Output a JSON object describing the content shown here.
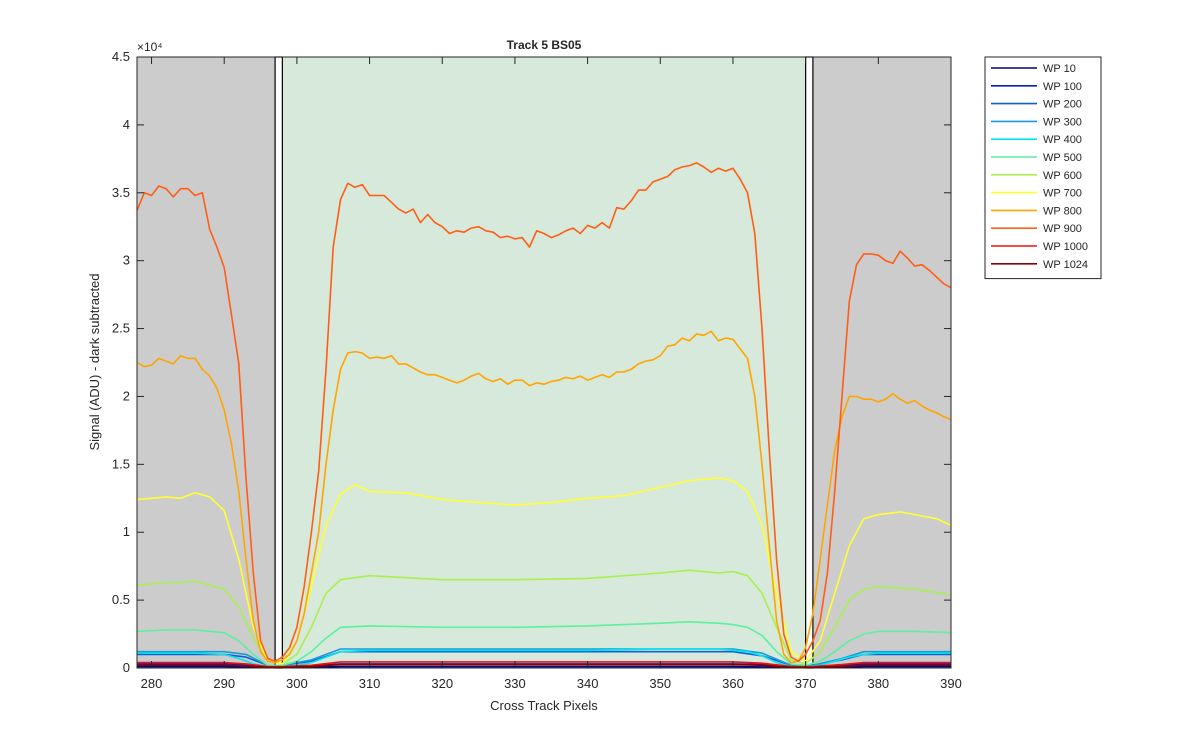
{
  "chart_data": {
    "type": "line",
    "title": "Track 5  BS05",
    "xlabel": "Cross Track Pixels",
    "ylabel": "Signal (ADU) - dark subtracted",
    "y_exponent_label": "×10⁴",
    "xlim": [
      278,
      390
    ],
    "ylim": [
      0,
      4.5
    ],
    "y_scale_note": "values in units of 10^4 ADU",
    "xticks": [
      280,
      290,
      300,
      310,
      320,
      330,
      340,
      350,
      360,
      370,
      380,
      390
    ],
    "yticks": [
      0,
      0.5,
      1,
      1.5,
      2,
      2.5,
      3,
      3.5,
      4,
      4.5
    ],
    "ytick_labels": [
      "0",
      "0.5",
      "1",
      "1.5",
      "2",
      "2.5",
      "3",
      "3.5",
      "4",
      "4.5"
    ],
    "grid": false,
    "legend_position": "outside-top-right",
    "shaded_regions": [
      {
        "x": [
          278,
          297
        ],
        "color": "#cccccc"
      },
      {
        "x": [
          298,
          370
        ],
        "color": "#d6e9da"
      },
      {
        "x": [
          371,
          390
        ],
        "color": "#cccccc"
      }
    ],
    "gap_markers": [
      {
        "x": [
          297,
          298
        ]
      },
      {
        "x": [
          370,
          371
        ]
      }
    ],
    "series": [
      {
        "name": "WP 10",
        "color": "#00008b",
        "x": [
          278,
          290,
          293,
          296,
          298,
          302,
          306,
          320,
          340,
          360,
          364,
          368,
          371,
          375,
          378,
          390
        ],
        "values": [
          0.01,
          0.01,
          0.008,
          0.004,
          0.003,
          0.005,
          0.01,
          0.01,
          0.01,
          0.01,
          0.008,
          0.004,
          0.003,
          0.006,
          0.01,
          0.01
        ]
      },
      {
        "name": "WP 100",
        "color": "#0022c4",
        "x": [
          278,
          290,
          293,
          296,
          298,
          302,
          306,
          320,
          340,
          360,
          364,
          368,
          371,
          375,
          378,
          390
        ],
        "values": [
          0.03,
          0.03,
          0.025,
          0.01,
          0.008,
          0.015,
          0.03,
          0.03,
          0.03,
          0.03,
          0.025,
          0.01,
          0.008,
          0.018,
          0.03,
          0.03
        ]
      },
      {
        "name": "WP 200",
        "color": "#0f5fd6",
        "x": [
          278,
          290,
          293,
          296,
          298,
          302,
          306,
          320,
          340,
          360,
          364,
          368,
          371,
          375,
          378,
          390
        ],
        "values": [
          0.1,
          0.1,
          0.08,
          0.02,
          0.02,
          0.05,
          0.12,
          0.12,
          0.12,
          0.12,
          0.09,
          0.02,
          0.02,
          0.06,
          0.1,
          0.1
        ]
      },
      {
        "name": "WP 300",
        "color": "#1a9bd8",
        "x": [
          278,
          290,
          293,
          296,
          298,
          302,
          306,
          320,
          340,
          360,
          364,
          368,
          371,
          375,
          378,
          390
        ],
        "values": [
          0.12,
          0.12,
          0.1,
          0.02,
          0.02,
          0.06,
          0.14,
          0.14,
          0.14,
          0.14,
          0.11,
          0.02,
          0.02,
          0.07,
          0.12,
          0.12
        ]
      },
      {
        "name": "WP 400",
        "color": "#00e5ee",
        "x": [
          278,
          282,
          286,
          290,
          292,
          294,
          296,
          298,
          300,
          302,
          304,
          306,
          310,
          320,
          330,
          340,
          350,
          354,
          358,
          360,
          362,
          364,
          366,
          368,
          370,
          372,
          374,
          376,
          378,
          380,
          385,
          390
        ],
        "values": [
          0.11,
          0.11,
          0.11,
          0.1,
          0.07,
          0.03,
          0.01,
          0.01,
          0.02,
          0.04,
          0.08,
          0.12,
          0.13,
          0.13,
          0.13,
          0.13,
          0.14,
          0.14,
          0.14,
          0.13,
          0.12,
          0.09,
          0.04,
          0.01,
          0.01,
          0.02,
          0.05,
          0.08,
          0.1,
          0.11,
          0.11,
          0.11
        ]
      },
      {
        "name": "WP 500",
        "color": "#5cf0a0",
        "x": [
          278,
          282,
          286,
          290,
          292,
          294,
          296,
          298,
          300,
          302,
          304,
          306,
          310,
          320,
          330,
          340,
          350,
          354,
          358,
          360,
          362,
          364,
          366,
          368,
          370,
          372,
          374,
          376,
          378,
          380,
          385,
          390
        ],
        "values": [
          0.27,
          0.28,
          0.28,
          0.26,
          0.2,
          0.1,
          0.02,
          0.02,
          0.05,
          0.12,
          0.22,
          0.3,
          0.31,
          0.3,
          0.3,
          0.31,
          0.33,
          0.34,
          0.33,
          0.32,
          0.3,
          0.24,
          0.12,
          0.03,
          0.02,
          0.05,
          0.12,
          0.2,
          0.25,
          0.27,
          0.27,
          0.26
        ]
      },
      {
        "name": "WP 600",
        "color": "#a8f050",
        "x": [
          278,
          282,
          284,
          286,
          290,
          292,
          294,
          296,
          298,
          300,
          302,
          304,
          306,
          310,
          320,
          330,
          340,
          350,
          354,
          358,
          360,
          362,
          364,
          366,
          368,
          370,
          372,
          374,
          376,
          378,
          380,
          385,
          390
        ],
        "values": [
          0.61,
          0.63,
          0.63,
          0.64,
          0.58,
          0.45,
          0.22,
          0.05,
          0.03,
          0.1,
          0.3,
          0.55,
          0.65,
          0.68,
          0.65,
          0.65,
          0.66,
          0.7,
          0.72,
          0.7,
          0.71,
          0.68,
          0.55,
          0.3,
          0.06,
          0.03,
          0.12,
          0.3,
          0.5,
          0.58,
          0.6,
          0.58,
          0.54
        ]
      },
      {
        "name": "WP 700",
        "color": "#ffff33",
        "x": [
          278,
          282,
          284,
          286,
          288,
          290,
          292,
          294,
          296,
          298,
          300,
          302,
          304,
          306,
          308,
          310,
          315,
          320,
          325,
          330,
          335,
          340,
          345,
          350,
          354,
          356,
          358,
          360,
          362,
          364,
          366,
          368,
          370,
          372,
          374,
          376,
          378,
          380,
          383,
          385,
          388,
          390
        ],
        "values": [
          1.24,
          1.26,
          1.25,
          1.29,
          1.26,
          1.16,
          0.8,
          0.3,
          0.05,
          0.03,
          0.2,
          0.6,
          1.05,
          1.28,
          1.35,
          1.3,
          1.29,
          1.24,
          1.22,
          1.2,
          1.22,
          1.25,
          1.27,
          1.33,
          1.38,
          1.39,
          1.4,
          1.38,
          1.3,
          1.05,
          0.55,
          0.12,
          0.05,
          0.2,
          0.55,
          0.9,
          1.1,
          1.13,
          1.15,
          1.13,
          1.1,
          1.05
        ]
      },
      {
        "name": "WP 800",
        "color": "#ffa500",
        "x": [
          278,
          279,
          280,
          281,
          282,
          283,
          284,
          285,
          286,
          287,
          288,
          289,
          290,
          291,
          292,
          293,
          294,
          295,
          296,
          297,
          298,
          299,
          300,
          301,
          302,
          303,
          304,
          305,
          306,
          307,
          308,
          309,
          310,
          311,
          312,
          313,
          314,
          315,
          316,
          317,
          318,
          319,
          320,
          321,
          322,
          323,
          324,
          325,
          326,
          327,
          328,
          329,
          330,
          331,
          332,
          333,
          334,
          335,
          336,
          337,
          338,
          339,
          340,
          341,
          342,
          343,
          344,
          345,
          346,
          347,
          348,
          349,
          350,
          351,
          352,
          353,
          354,
          355,
          356,
          357,
          358,
          359,
          360,
          361,
          362,
          363,
          364,
          365,
          366,
          367,
          368,
          369,
          370,
          371,
          372,
          373,
          374,
          375,
          376,
          377,
          378,
          379,
          380,
          381,
          382,
          383,
          384,
          385,
          386,
          387,
          388,
          389,
          390
        ],
        "values": [
          2.25,
          2.22,
          2.23,
          2.28,
          2.26,
          2.24,
          2.3,
          2.28,
          2.28,
          2.2,
          2.15,
          2.06,
          1.9,
          1.65,
          1.3,
          0.8,
          0.35,
          0.12,
          0.05,
          0.04,
          0.06,
          0.1,
          0.2,
          0.4,
          0.7,
          1.0,
          1.5,
          1.9,
          2.2,
          2.32,
          2.33,
          2.32,
          2.28,
          2.29,
          2.28,
          2.3,
          2.24,
          2.24,
          2.21,
          2.18,
          2.16,
          2.16,
          2.14,
          2.12,
          2.1,
          2.12,
          2.15,
          2.17,
          2.13,
          2.11,
          2.13,
          2.09,
          2.12,
          2.12,
          2.08,
          2.1,
          2.09,
          2.11,
          2.12,
          2.14,
          2.13,
          2.15,
          2.12,
          2.14,
          2.16,
          2.14,
          2.18,
          2.18,
          2.2,
          2.24,
          2.26,
          2.27,
          2.3,
          2.37,
          2.38,
          2.43,
          2.41,
          2.46,
          2.45,
          2.48,
          2.41,
          2.43,
          2.42,
          2.35,
          2.28,
          2.0,
          1.5,
          0.9,
          0.35,
          0.1,
          0.04,
          0.05,
          0.15,
          0.4,
          0.8,
          1.2,
          1.6,
          1.85,
          2.0,
          2.0,
          1.98,
          1.98,
          1.96,
          1.98,
          2.02,
          1.98,
          1.95,
          1.97,
          1.93,
          1.9,
          1.88,
          1.85,
          1.83
        ]
      },
      {
        "name": "WP 900",
        "color": "#ff5e14",
        "x": [
          278,
          279,
          280,
          281,
          282,
          283,
          284,
          285,
          286,
          287,
          288,
          289,
          290,
          291,
          292,
          293,
          294,
          295,
          296,
          297,
          298,
          299,
          300,
          301,
          302,
          303,
          304,
          305,
          306,
          307,
          308,
          309,
          310,
          311,
          312,
          313,
          314,
          315,
          316,
          317,
          318,
          319,
          320,
          321,
          322,
          323,
          324,
          325,
          326,
          327,
          328,
          329,
          330,
          331,
          332,
          333,
          334,
          335,
          336,
          337,
          338,
          339,
          340,
          341,
          342,
          343,
          344,
          345,
          346,
          347,
          348,
          349,
          350,
          351,
          352,
          353,
          354,
          355,
          356,
          357,
          358,
          359,
          360,
          361,
          362,
          363,
          364,
          365,
          366,
          367,
          368,
          369,
          370,
          371,
          372,
          373,
          374,
          375,
          376,
          377,
          378,
          379,
          380,
          381,
          382,
          383,
          384,
          385,
          386,
          387,
          388,
          389,
          390
        ],
        "values": [
          3.37,
          3.5,
          3.48,
          3.55,
          3.53,
          3.47,
          3.53,
          3.53,
          3.48,
          3.5,
          3.23,
          3.1,
          2.95,
          2.6,
          2.24,
          1.4,
          0.7,
          0.2,
          0.07,
          0.05,
          0.08,
          0.15,
          0.3,
          0.6,
          1.0,
          1.45,
          2.2,
          3.1,
          3.45,
          3.57,
          3.54,
          3.56,
          3.48,
          3.48,
          3.48,
          3.43,
          3.38,
          3.35,
          3.38,
          3.28,
          3.34,
          3.28,
          3.25,
          3.2,
          3.22,
          3.21,
          3.24,
          3.25,
          3.22,
          3.21,
          3.17,
          3.18,
          3.16,
          3.17,
          3.1,
          3.22,
          3.2,
          3.17,
          3.19,
          3.22,
          3.24,
          3.2,
          3.26,
          3.24,
          3.28,
          3.24,
          3.39,
          3.38,
          3.44,
          3.52,
          3.52,
          3.58,
          3.6,
          3.62,
          3.67,
          3.69,
          3.7,
          3.72,
          3.69,
          3.65,
          3.68,
          3.66,
          3.68,
          3.6,
          3.5,
          3.2,
          2.5,
          1.6,
          0.8,
          0.25,
          0.08,
          0.05,
          0.1,
          0.2,
          0.35,
          0.7,
          1.3,
          2.0,
          2.7,
          2.97,
          3.05,
          3.05,
          3.04,
          3.0,
          2.98,
          3.07,
          3.02,
          2.96,
          2.97,
          2.93,
          2.88,
          2.83,
          2.8
        ]
      },
      {
        "name": "WP 1000",
        "color": "#ee1010",
        "x": [
          278,
          290,
          293,
          296,
          298,
          302,
          306,
          320,
          340,
          360,
          364,
          368,
          371,
          375,
          378,
          390
        ],
        "values": [
          0.04,
          0.04,
          0.03,
          0.01,
          0.01,
          0.02,
          0.045,
          0.045,
          0.045,
          0.045,
          0.035,
          0.01,
          0.01,
          0.025,
          0.04,
          0.04
        ]
      },
      {
        "name": "WP 1024",
        "color": "#8b0000",
        "x": [
          278,
          290,
          293,
          296,
          298,
          302,
          306,
          320,
          340,
          360,
          364,
          368,
          371,
          375,
          378,
          390
        ],
        "values": [
          0.02,
          0.02,
          0.015,
          0.005,
          0.005,
          0.01,
          0.025,
          0.025,
          0.025,
          0.025,
          0.02,
          0.005,
          0.005,
          0.012,
          0.02,
          0.02
        ]
      }
    ]
  }
}
